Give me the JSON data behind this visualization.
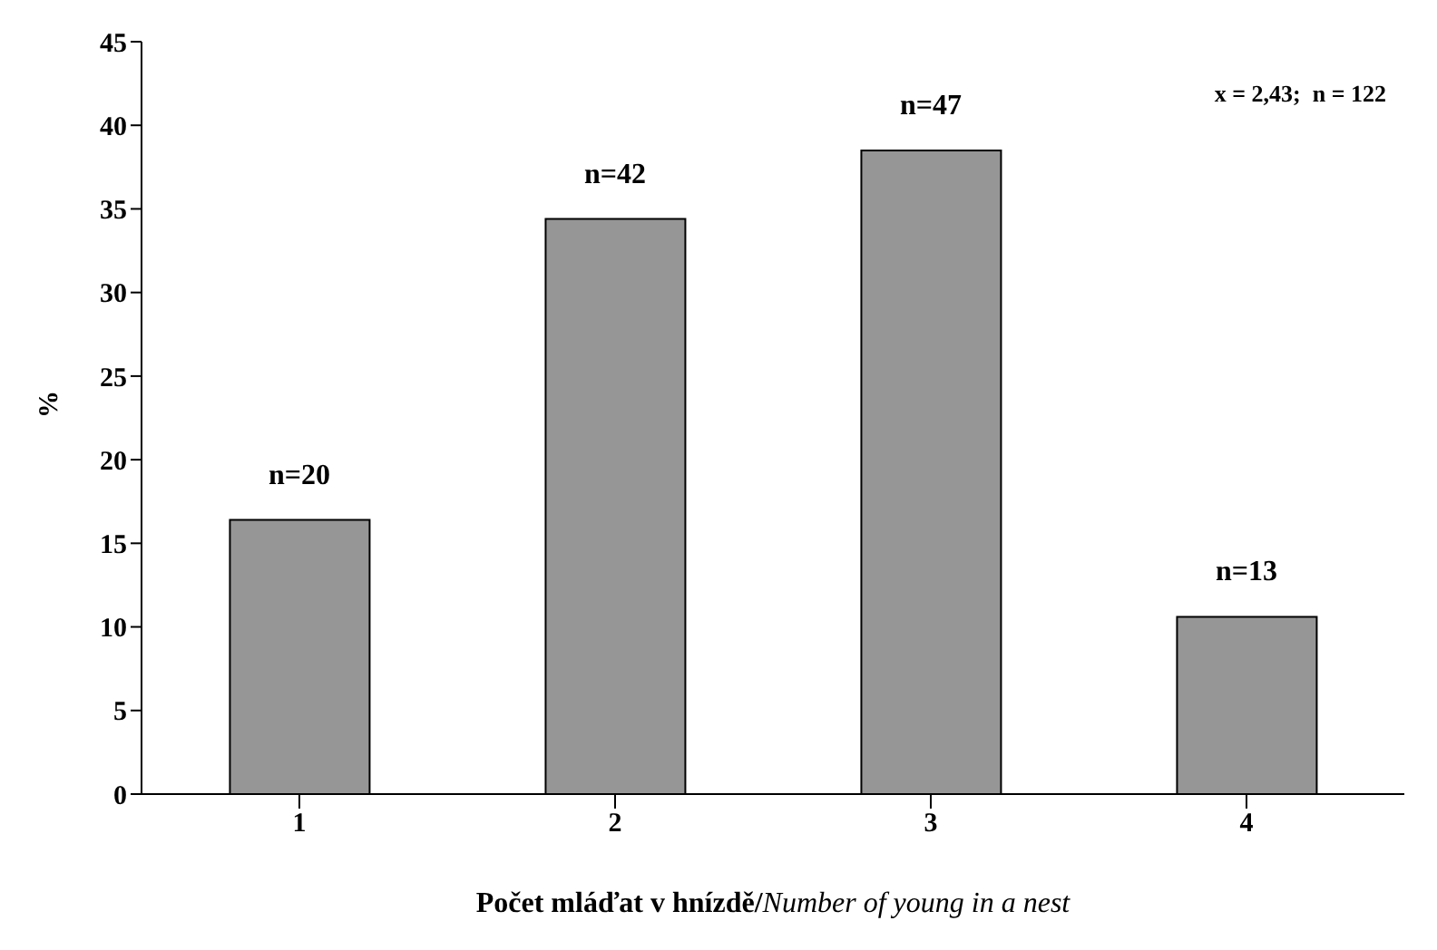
{
  "chart_data": {
    "type": "bar",
    "categories": [
      "1",
      "2",
      "3",
      "4"
    ],
    "values": [
      16.4,
      34.4,
      38.5,
      10.6
    ],
    "color": "#969696",
    "xlabel": "Počet mláďat v hnízdě/Number of young in a nest",
    "ylabel": "%",
    "annotations": [
      "x = 2,43;  n = 122",
      {
        "text": "n=20",
        "x": "1",
        "y": 16.4
      },
      {
        "text": "n=42",
        "x": "2",
        "y": 34.4
      },
      {
        "text": "n=47",
        "x": "3",
        "y": 38.5
      },
      {
        "text": "n=13",
        "x": "4",
        "y": 10.6
      }
    ],
    "ylim": [
      0,
      45
    ],
    "yticks": [
      0,
      5,
      10,
      15,
      20,
      25,
      30,
      35,
      40,
      45
    ],
    "grid": false,
    "legend": false
  }
}
